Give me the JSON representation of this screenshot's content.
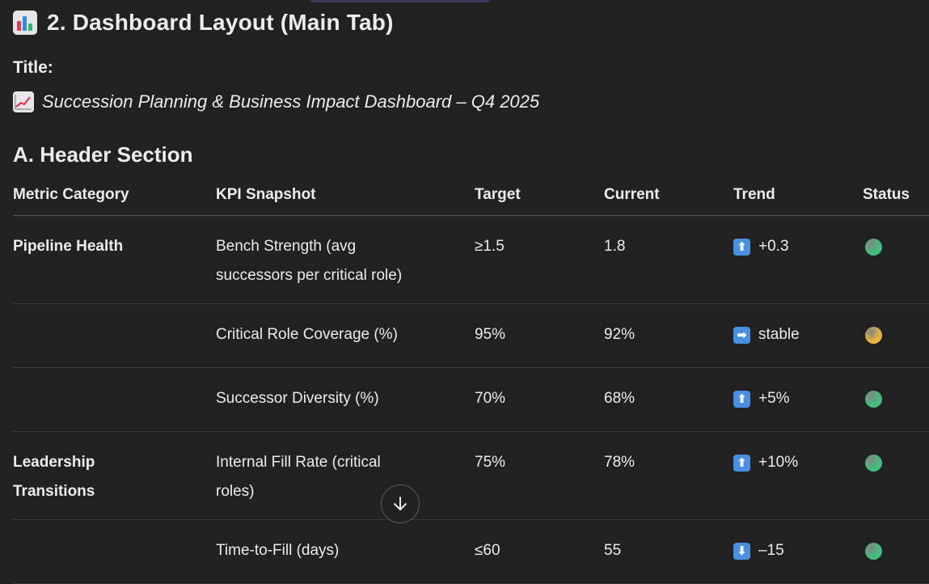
{
  "section": {
    "heading": "2. Dashboard Layout (Main Tab)",
    "title_label": "Title:",
    "title_text": "Succession Planning & Business Impact Dashboard – Q4 2025",
    "subheading": "A. Header Section"
  },
  "icons": {
    "heading_icon": "bar-chart-emoji-icon",
    "title_icon": "chart-increasing-emoji-icon",
    "scroll_icon": "arrow-down-icon"
  },
  "table": {
    "headers": [
      "Metric Category",
      "KPI Snapshot",
      "Target",
      "Current",
      "Trend",
      "Status"
    ],
    "rows": [
      {
        "category": "Pipeline Health",
        "kpi": "Bench Strength (avg successors per critical role)",
        "target": "≥1.5",
        "current": "1.8",
        "trend_arrow": "⬆",
        "trend_text": "+0.3",
        "status_color": "#3fbf7a"
      },
      {
        "category": "",
        "kpi": "Critical Role Coverage (%)",
        "target": "95%",
        "current": "92%",
        "trend_arrow": "➡",
        "trend_text": "stable",
        "status_color": "#e9b63b"
      },
      {
        "category": "",
        "kpi": "Successor Diversity (%)",
        "target": "70%",
        "current": "68%",
        "trend_arrow": "⬆",
        "trend_text": "+5%",
        "status_color": "#3fbf7a"
      },
      {
        "category": "Leadership Transitions",
        "kpi": "Internal Fill Rate (critical roles)",
        "target": "75%",
        "current": "78%",
        "trend_arrow": "⬆",
        "trend_text": "+10%",
        "status_color": "#3fbf7a"
      },
      {
        "category": "",
        "kpi": "Time-to-Fill (days)",
        "target": "≤60",
        "current": "55",
        "trend_arrow": "⬇",
        "trend_text": "–15",
        "status_color": "#3fbf7a"
      }
    ]
  }
}
